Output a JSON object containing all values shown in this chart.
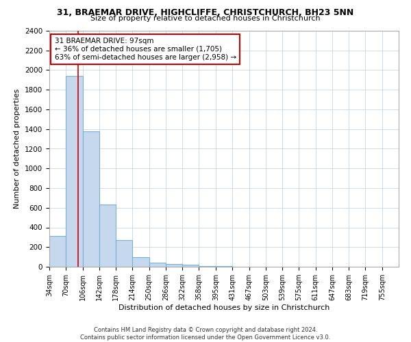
{
  "title1": "31, BRAEMAR DRIVE, HIGHCLIFFE, CHRISTCHURCH, BH23 5NN",
  "title2": "Size of property relative to detached houses in Christchurch",
  "xlabel": "Distribution of detached houses by size in Christchurch",
  "ylabel": "Number of detached properties",
  "bin_edges": [
    34,
    70,
    106,
    142,
    178,
    214,
    250,
    286,
    322,
    358,
    395,
    431,
    467,
    503,
    539,
    575,
    611,
    647,
    683,
    719,
    755
  ],
  "bar_heights": [
    310,
    1940,
    1380,
    630,
    270,
    95,
    45,
    30,
    20,
    10,
    5,
    3,
    2,
    2,
    1,
    1,
    0,
    0,
    0,
    0
  ],
  "bar_color": "#c5d8ee",
  "bar_edge_color": "#7bafd4",
  "property_size": 97,
  "property_label": "31 BRAEMAR DRIVE: 97sqm",
  "pct_smaller": "36% of detached houses are smaller (1,705)",
  "pct_larger": "63% of semi-detached houses are larger (2,958)",
  "vline_color": "#cc0000",
  "annotation_box_color": "#cc0000",
  "ylim": [
    0,
    2400
  ],
  "yticks": [
    0,
    200,
    400,
    600,
    800,
    1000,
    1200,
    1400,
    1600,
    1800,
    2000,
    2200,
    2400
  ],
  "grid_color": "#c8d8e8",
  "footnote1": "Contains HM Land Registry data © Crown copyright and database right 2024.",
  "footnote2": "Contains public sector information licensed under the Open Government Licence v3.0."
}
